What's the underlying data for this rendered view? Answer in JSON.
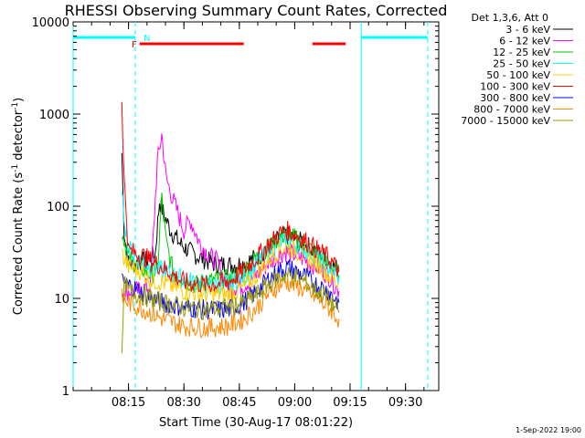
{
  "chart_data": {
    "type": "line",
    "title": "RHESSI Observing Summary Count Rates, Corrected",
    "xlabel": "Start Time (30-Aug-17 08:01:22)",
    "ylabel_main": "Corrected Count Rate (s",
    "ylabel_sup1": "-1",
    "ylabel_mid": " detector",
    "ylabel_sup2": "-1",
    "ylabel_end": ")",
    "y_scale": "log",
    "ylim": [
      1,
      10000
    ],
    "xlim_minutes": [
      8.0,
      9.65
    ],
    "y_ticks": [
      {
        "value": 1,
        "label": "1"
      },
      {
        "value": 10,
        "label": "10"
      },
      {
        "value": 100,
        "label": "100"
      },
      {
        "value": 1000,
        "label": "1000"
      },
      {
        "value": 10000,
        "label": "10000"
      }
    ],
    "x_ticks": [
      {
        "value": 8.25,
        "label": "08:15"
      },
      {
        "value": 8.5,
        "label": "08:30"
      },
      {
        "value": 8.75,
        "label": "08:45"
      },
      {
        "value": 9.0,
        "label": "09:00"
      },
      {
        "value": 9.25,
        "label": "09:15"
      },
      {
        "value": 9.5,
        "label": "09:30"
      }
    ],
    "legend": {
      "title": "Det 1,3,6, Att 0",
      "placement": "top-right",
      "entries": [
        {
          "label": "3 - 6 keV",
          "color": "#000000"
        },
        {
          "label": "6 - 12 keV",
          "color": "#ff00ff"
        },
        {
          "label": "12 - 25 keV",
          "color": "#00cc00"
        },
        {
          "label": "25 - 50 keV",
          "color": "#00ffff"
        },
        {
          "label": "50 - 100 keV",
          "color": "#ffcc00"
        },
        {
          "label": "100 - 300 keV",
          "color": "#ff0000"
        },
        {
          "label": "300 - 800 keV",
          "color": "#0000ff"
        },
        {
          "label": "800 - 7000 keV",
          "color": "#ff8800"
        },
        {
          "label": "7000 - 15000 keV",
          "color": "#999900"
        }
      ]
    },
    "annotations": [
      {
        "label": "F",
        "color": "#ff0000"
      },
      {
        "label": "N",
        "color": "#00ffff"
      }
    ],
    "flare_flags": [
      [
        8.3,
        8.77
      ],
      [
        9.08,
        9.23
      ]
    ],
    "night_flags": [
      [
        8.0,
        8.28
      ],
      [
        9.3,
        9.6
      ]
    ],
    "solid_vlines": [
      8.0,
      9.3
    ],
    "dashed_vlines": [
      8.28,
      9.6
    ],
    "series": [
      {
        "name": "3 - 6 keV",
        "color": "#000000",
        "points": [
          [
            8.22,
            380
          ],
          [
            8.23,
            55
          ],
          [
            8.25,
            24
          ],
          [
            8.3,
            24
          ],
          [
            8.33,
            26
          ],
          [
            8.37,
            30
          ],
          [
            8.39,
            115
          ],
          [
            8.41,
            80
          ],
          [
            8.44,
            55
          ],
          [
            8.48,
            40
          ],
          [
            8.52,
            33
          ],
          [
            8.57,
            28
          ],
          [
            8.63,
            24
          ],
          [
            8.7,
            23
          ],
          [
            8.77,
            24
          ],
          [
            8.83,
            28
          ],
          [
            8.88,
            34
          ],
          [
            8.92,
            42
          ],
          [
            8.96,
            48
          ],
          [
            9.0,
            45
          ],
          [
            9.05,
            38
          ],
          [
            9.1,
            32
          ],
          [
            9.15,
            26
          ],
          [
            9.2,
            20
          ]
        ]
      },
      {
        "name": "6 - 12 keV",
        "color": "#ff00ff",
        "points": [
          [
            8.22,
            12
          ],
          [
            8.25,
            12
          ],
          [
            8.3,
            12
          ],
          [
            8.35,
            14
          ],
          [
            8.38,
            300
          ],
          [
            8.4,
            600
          ],
          [
            8.42,
            200
          ],
          [
            8.45,
            120
          ],
          [
            8.48,
            75
          ],
          [
            8.5,
            55
          ],
          [
            8.53,
            70
          ],
          [
            8.57,
            40
          ],
          [
            8.62,
            28
          ],
          [
            8.65,
            25
          ],
          [
            8.7,
            13
          ],
          [
            8.77,
            14
          ],
          [
            8.83,
            18
          ],
          [
            8.88,
            24
          ],
          [
            8.93,
            30
          ],
          [
            8.96,
            32
          ],
          [
            9.0,
            30
          ],
          [
            9.05,
            26
          ],
          [
            9.1,
            22
          ],
          [
            9.15,
            18
          ],
          [
            9.2,
            12
          ]
        ]
      },
      {
        "name": "12 - 25 keV",
        "color": "#00cc00",
        "points": [
          [
            8.22,
            50
          ],
          [
            8.23,
            45
          ],
          [
            8.25,
            28
          ],
          [
            8.3,
            22
          ],
          [
            8.35,
            18
          ],
          [
            8.38,
            20
          ],
          [
            8.4,
            120
          ],
          [
            8.42,
            40
          ],
          [
            8.45,
            20
          ],
          [
            8.5,
            16
          ],
          [
            8.55,
            14
          ],
          [
            8.6,
            15
          ],
          [
            8.65,
            16
          ],
          [
            8.7,
            16
          ],
          [
            8.77,
            20
          ],
          [
            8.83,
            28
          ],
          [
            8.88,
            36
          ],
          [
            8.93,
            46
          ],
          [
            8.96,
            50
          ],
          [
            9.0,
            45
          ],
          [
            9.05,
            38
          ],
          [
            9.1,
            30
          ],
          [
            9.15,
            24
          ],
          [
            9.2,
            18
          ]
        ]
      },
      {
        "name": "25 - 50 keV",
        "color": "#00ffff",
        "points": [
          [
            8.22,
            120
          ],
          [
            8.25,
            35
          ],
          [
            8.3,
            26
          ],
          [
            8.35,
            22
          ],
          [
            8.4,
            20
          ],
          [
            8.45,
            18
          ],
          [
            8.5,
            16
          ],
          [
            8.6,
            14
          ],
          [
            8.7,
            14
          ],
          [
            8.77,
            17
          ],
          [
            8.83,
            24
          ],
          [
            8.88,
            32
          ],
          [
            8.93,
            40
          ],
          [
            8.96,
            44
          ],
          [
            9.0,
            40
          ],
          [
            9.05,
            34
          ],
          [
            9.1,
            28
          ],
          [
            9.15,
            22
          ],
          [
            9.2,
            17
          ]
        ]
      },
      {
        "name": "50 - 100 keV",
        "color": "#ffcc00",
        "points": [
          [
            8.22,
            30
          ],
          [
            8.25,
            22
          ],
          [
            8.3,
            20
          ],
          [
            8.35,
            16
          ],
          [
            8.4,
            15
          ],
          [
            8.5,
            12
          ],
          [
            8.6,
            11
          ],
          [
            8.7,
            11
          ],
          [
            8.77,
            13
          ],
          [
            8.83,
            18
          ],
          [
            8.88,
            26
          ],
          [
            8.93,
            34
          ],
          [
            8.96,
            36
          ],
          [
            9.0,
            34
          ],
          [
            9.05,
            28
          ],
          [
            9.1,
            24
          ],
          [
            9.15,
            18
          ],
          [
            9.2,
            14
          ]
        ]
      },
      {
        "name": "100 - 300 keV",
        "color": "#ff0000",
        "points": [
          [
            8.22,
            1500
          ],
          [
            8.23,
            200
          ],
          [
            8.25,
            33
          ],
          [
            8.3,
            30
          ],
          [
            8.35,
            26
          ],
          [
            8.4,
            22
          ],
          [
            8.45,
            18
          ],
          [
            8.5,
            15
          ],
          [
            8.6,
            14
          ],
          [
            8.7,
            15
          ],
          [
            8.77,
            20
          ],
          [
            8.83,
            28
          ],
          [
            8.88,
            38
          ],
          [
            8.93,
            50
          ],
          [
            8.96,
            55
          ],
          [
            9.0,
            50
          ],
          [
            9.05,
            42
          ],
          [
            9.1,
            34
          ],
          [
            9.15,
            28
          ],
          [
            9.2,
            20
          ]
        ]
      },
      {
        "name": "300 - 800 keV",
        "color": "#0000ff",
        "points": [
          [
            8.22,
            15
          ],
          [
            8.25,
            14
          ],
          [
            8.3,
            12
          ],
          [
            8.35,
            10
          ],
          [
            8.4,
            9
          ],
          [
            8.5,
            8
          ],
          [
            8.6,
            7.5
          ],
          [
            8.7,
            7.5
          ],
          [
            8.77,
            9
          ],
          [
            8.83,
            12
          ],
          [
            8.88,
            16
          ],
          [
            8.93,
            20
          ],
          [
            8.96,
            22
          ],
          [
            9.0,
            20
          ],
          [
            9.05,
            17
          ],
          [
            9.1,
            14
          ],
          [
            9.15,
            12
          ],
          [
            9.2,
            9
          ]
        ]
      },
      {
        "name": "800 - 7000 keV",
        "color": "#ff8800",
        "points": [
          [
            8.22,
            10
          ],
          [
            8.25,
            9
          ],
          [
            8.3,
            8
          ],
          [
            8.35,
            7
          ],
          [
            8.4,
            6
          ],
          [
            8.5,
            5
          ],
          [
            8.6,
            4.8
          ],
          [
            8.7,
            5
          ],
          [
            8.77,
            6
          ],
          [
            8.83,
            8
          ],
          [
            8.88,
            11
          ],
          [
            8.93,
            14
          ],
          [
            8.96,
            15
          ],
          [
            9.0,
            14
          ],
          [
            9.05,
            12
          ],
          [
            9.1,
            10
          ],
          [
            9.15,
            8
          ],
          [
            9.2,
            6
          ]
        ]
      },
      {
        "name": "7000 - 15000 keV",
        "color": "#999900",
        "points": [
          [
            8.22,
            2
          ],
          [
            8.23,
            14
          ],
          [
            8.25,
            12
          ],
          [
            8.3,
            11
          ],
          [
            8.35,
            10
          ],
          [
            8.4,
            9
          ],
          [
            8.5,
            8
          ],
          [
            8.6,
            7.5
          ],
          [
            8.7,
            8
          ],
          [
            8.77,
            9
          ],
          [
            8.83,
            11
          ],
          [
            8.88,
            14
          ],
          [
            8.93,
            17
          ],
          [
            8.96,
            18
          ],
          [
            9.0,
            17
          ],
          [
            9.05,
            15
          ],
          [
            9.1,
            12
          ],
          [
            9.15,
            10
          ],
          [
            9.2,
            7
          ]
        ]
      }
    ],
    "footer_date": "1-Sep-2022 19:00"
  }
}
